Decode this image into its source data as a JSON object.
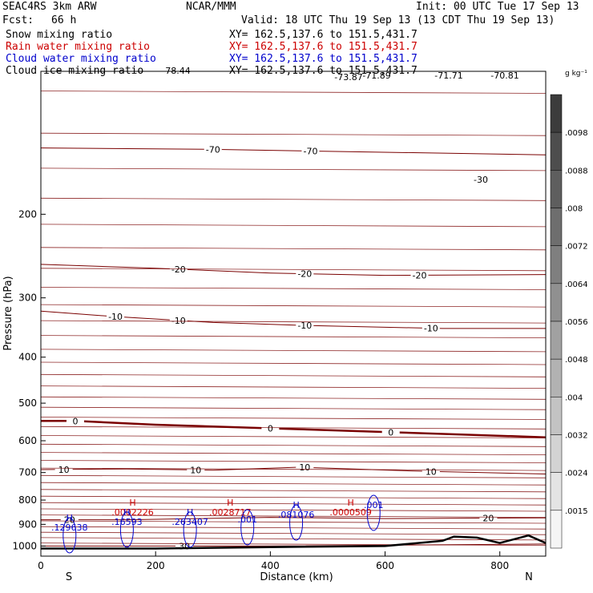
{
  "header": {
    "model": "SEAC4RS  3km ARW",
    "org": "NCAR/MMM",
    "init": "Init: 00 UTC Tue 17 Sep 13",
    "fcst_label": "Fcst:",
    "fcst_value": "66 h",
    "valid": "Valid: 18 UTC Thu 19 Sep 13 (13 CDT Thu 19 Sep 13)"
  },
  "fields": [
    {
      "name": "Snow mixing ratio",
      "xy": "XY= 162.5,137.6 to 151.5,431.7",
      "color": "#000000"
    },
    {
      "name": "Rain water mixing ratio",
      "xy": "XY= 162.5,137.6 to 151.5,431.7",
      "color": "#cc0000"
    },
    {
      "name": "Cloud water mixing ratio",
      "xy": "XY= 162.5,137.6 to 151.5,431.7",
      "color": "#0000cc"
    },
    {
      "name": "Cloud ice mixing ratio",
      "xy": "XY= 162.5,137.6 to 151.5,431.7",
      "color": "#000000"
    }
  ],
  "chart_data": {
    "type": "contour cross-section",
    "xlabel": "Distance (km)",
    "ylabel": "Pressure (hPa)",
    "xlim": [
      0,
      880
    ],
    "ylim": [
      1050,
      100
    ],
    "y_scale": "log",
    "x_ticks": [
      0,
      200,
      400,
      600,
      800
    ],
    "y_ticks": [
      200,
      300,
      400,
      500,
      600,
      700,
      800,
      900,
      1000
    ],
    "y_tick_labels": [
      "200",
      "300",
      "400",
      "500",
      "600",
      "700",
      "800",
      "900",
      "1000"
    ],
    "x_end_labels": {
      "left": "S",
      "right": "N"
    },
    "colorbar": {
      "units": "g kg⁻¹",
      "labels": [
        ".0098",
        ".0088",
        ".008",
        ".0072",
        ".0064",
        ".0056",
        ".0048",
        ".004",
        ".0032",
        ".0024",
        ".0015"
      ]
    },
    "temperature_isotherms": [
      {
        "label": "-70",
        "points": [
          [
            0,
            145
          ],
          [
            300,
            146
          ],
          [
            880,
            150
          ]
        ],
        "label_x": [
          300,
          470
        ]
      },
      {
        "label": "-20",
        "points": [
          [
            0,
            255
          ],
          [
            200,
            260
          ],
          [
            400,
            266
          ],
          [
            600,
            269
          ],
          [
            880,
            268
          ]
        ],
        "label_x": [
          240,
          460,
          660
        ]
      },
      {
        "label": "-10",
        "points": [
          [
            0,
            320
          ],
          [
            120,
            328
          ],
          [
            300,
            338
          ],
          [
            460,
            343
          ],
          [
            700,
            348
          ],
          [
            880,
            348
          ]
        ],
        "label_x": [
          130,
          240,
          460,
          680
        ]
      },
      {
        "label": "0",
        "points": [
          [
            0,
            545
          ],
          [
            60,
            545
          ],
          [
            200,
            555
          ],
          [
            400,
            565
          ],
          [
            600,
            575
          ],
          [
            880,
            590
          ]
        ],
        "label_x": [
          60,
          400,
          610
        ]
      },
      {
        "label": "10",
        "points": [
          [
            0,
            690
          ],
          [
            150,
            688
          ],
          [
            300,
            692
          ],
          [
            450,
            682
          ],
          [
            650,
            695
          ],
          [
            880,
            705
          ]
        ],
        "label_x": [
          40,
          270,
          460,
          680
        ]
      },
      {
        "label": "20",
        "points": [
          [
            0,
            880
          ],
          [
            150,
            880
          ],
          [
            400,
            870
          ],
          [
            600,
            875
          ],
          [
            880,
            872
          ]
        ],
        "label_x": [
          50,
          780
        ]
      },
      {
        "label": "30",
        "points": [
          [
            0,
            1000
          ],
          [
            200,
            1000
          ],
          [
            400,
            1000
          ],
          [
            880,
            990
          ]
        ],
        "label_x": [
          250
        ]
      }
    ],
    "isotherm_extra_labels": [
      "-30",
      "-71.89",
      "-71.71",
      "-70.81",
      "-73.87",
      "-78.44"
    ],
    "terrain": [
      [
        0,
        1012
      ],
      [
        200,
        1012
      ],
      [
        400,
        1005
      ],
      [
        600,
        1000
      ],
      [
        700,
        975
      ],
      [
        720,
        955
      ],
      [
        760,
        960
      ],
      [
        800,
        985
      ],
      [
        850,
        950
      ],
      [
        880,
        985
      ]
    ],
    "extrema": [
      {
        "type": "H",
        "value": ".0002226",
        "x": 160,
        "p": 855,
        "color": "#cc0000"
      },
      {
        "type": "H",
        "value": ".0028717",
        "x": 330,
        "p": 855,
        "color": "#cc0000"
      },
      {
        "type": "H",
        "value": ".0000509",
        "x": 540,
        "p": 855,
        "color": "#cc0000"
      },
      {
        "type": "H",
        "value": ".129638",
        "x": 50,
        "p": 920,
        "color": "#0000cc"
      },
      {
        "type": "H",
        "value": ".16593",
        "x": 150,
        "p": 895,
        "color": "#0000cc"
      },
      {
        "type": "H",
        "value": ".263407",
        "x": 260,
        "p": 895,
        "color": "#0000cc"
      },
      {
        "type": "H",
        "value": ".081076",
        "x": 445,
        "p": 865,
        "color": "#0000cc"
      },
      {
        "type": "",
        "value": ".001",
        "x": 360,
        "p": 885,
        "color": "#0000cc"
      },
      {
        "type": "",
        "value": ".001",
        "x": 580,
        "p": 825,
        "color": "#0000cc"
      }
    ]
  }
}
